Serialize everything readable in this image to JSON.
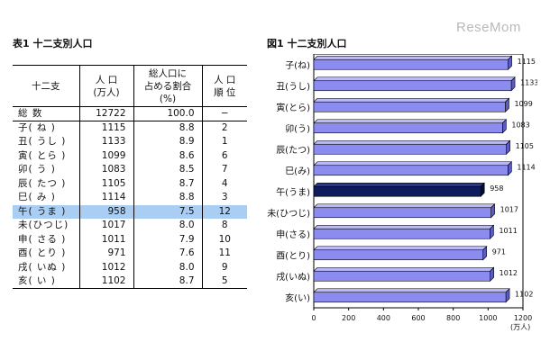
{
  "watermark": "ReseMom",
  "table": {
    "title": "表1 十二支別人口",
    "headers": {
      "name": "十二支",
      "population_l1": "人 口",
      "population_l2": "(万人)",
      "share_l1": "総人口に",
      "share_l2": "占める割合",
      "share_l3": "(%)",
      "rank_l1": "人 口",
      "rank_l2": "順 位"
    },
    "rows": [
      {
        "name": "総 数",
        "pop": "12722",
        "share": "100.0",
        "rank": "−"
      },
      {
        "name": "子( ね )",
        "pop": "1115",
        "share": "8.8",
        "rank": "2"
      },
      {
        "name": "丑( うし )",
        "pop": "1133",
        "share": "8.9",
        "rank": "1"
      },
      {
        "name": "寅( とら )",
        "pop": "1099",
        "share": "8.6",
        "rank": "6"
      },
      {
        "name": "卯( う )",
        "pop": "1083",
        "share": "8.5",
        "rank": "7"
      },
      {
        "name": "辰( たつ )",
        "pop": "1105",
        "share": "8.7",
        "rank": "4"
      },
      {
        "name": "巳( み )",
        "pop": "1114",
        "share": "8.8",
        "rank": "3"
      },
      {
        "name": "午( うま )",
        "pop": "958",
        "share": "7.5",
        "rank": "12"
      },
      {
        "name": "未(ひつじ)",
        "pop": "1017",
        "share": "8.0",
        "rank": "8"
      },
      {
        "name": "申( さる )",
        "pop": "1011",
        "share": "7.9",
        "rank": "10"
      },
      {
        "name": "酉( とり )",
        "pop": "971",
        "share": "7.6",
        "rank": "11"
      },
      {
        "name": "戌( いぬ )",
        "pop": "1012",
        "share": "8.0",
        "rank": "9"
      },
      {
        "name": "亥( い )",
        "pop": "1102",
        "share": "8.7",
        "rank": "5"
      }
    ],
    "highlight_row_name": "午( うま )",
    "highlight_color": "#a9cdf3"
  },
  "chart_data": {
    "type": "bar",
    "orientation": "horizontal",
    "title": "図1 十二支別人口",
    "categories": [
      "子(ね)",
      "丑(うし)",
      "寅(とら)",
      "卯(う)",
      "辰(たつ)",
      "巳(み)",
      "午(うま)",
      "未(ひつじ)",
      "申(さる)",
      "酉(とり)",
      "戌(いぬ)",
      "亥(い)"
    ],
    "values": [
      1115,
      1133,
      1099,
      1083,
      1105,
      1114,
      958,
      1017,
      1011,
      971,
      1012,
      1102
    ],
    "xlim": [
      0,
      1200
    ],
    "xticks": [
      0,
      200,
      400,
      600,
      800,
      1000,
      1200
    ],
    "xunit": "(万人)",
    "grid": false,
    "legend": "none",
    "bar_color": "#8c8cf0",
    "highlight_category": "午(うま)",
    "highlight_color": "#0c1c5c",
    "data_labels": true
  }
}
